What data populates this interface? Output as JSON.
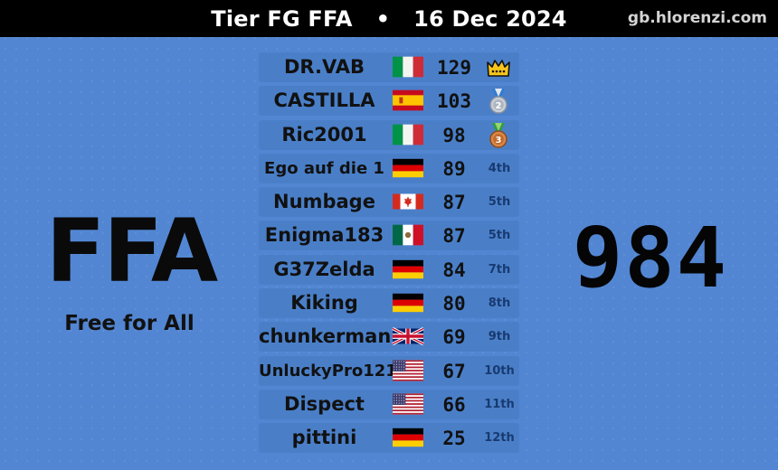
{
  "header": {
    "title": "Tier FG FFA",
    "separator": "•",
    "date": "16 Dec 2024",
    "site": "gb.hlorenzi.com"
  },
  "mode": {
    "short": "FFA",
    "full": "Free for All"
  },
  "total": "984",
  "players": [
    {
      "name": "DR.VAB",
      "flag": "italy-flag",
      "score": "129",
      "rank": "",
      "medal": "crown-icon"
    },
    {
      "name": "CASTILLA",
      "flag": "spain-flag",
      "score": "103",
      "rank": "",
      "medal": "silver-medal-icon",
      "medal_num": "2"
    },
    {
      "name": "Ric2001",
      "flag": "italy-flag",
      "score": "98",
      "rank": "",
      "medal": "bronze-medal-icon",
      "medal_num": "3"
    },
    {
      "name": "Ego auf die 1",
      "flag": "germany-flag",
      "score": "89",
      "rank": "4th"
    },
    {
      "name": "Numbage",
      "flag": "canada-flag",
      "score": "87",
      "rank": "5th"
    },
    {
      "name": "Enigma183",
      "flag": "mexico-flag",
      "score": "87",
      "rank": "5th"
    },
    {
      "name": "G37Zelda",
      "flag": "germany-flag",
      "score": "84",
      "rank": "7th"
    },
    {
      "name": "Kiking",
      "flag": "germany-flag",
      "score": "80",
      "rank": "8th"
    },
    {
      "name": "chunkerman",
      "flag": "uk-flag",
      "score": "69",
      "rank": "9th"
    },
    {
      "name": "UnluckyPro121",
      "flag": "usa-flag",
      "score": "67",
      "rank": "10th"
    },
    {
      "name": "Dispect",
      "flag": "usa-flag",
      "score": "66",
      "rank": "11th"
    },
    {
      "name": "pittini",
      "flag": "germany-flag",
      "score": "25",
      "rank": "12th"
    }
  ]
}
